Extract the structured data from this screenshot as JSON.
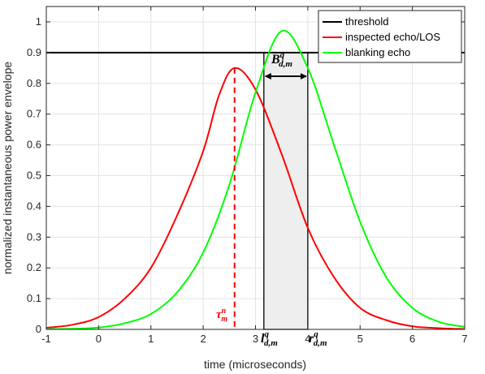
{
  "chart_data": {
    "type": "line",
    "title": "",
    "xlabel": "time (microseconds)",
    "ylabel": "normalized instantaneous power envelope",
    "xlim": [
      -1,
      7
    ],
    "ylim": [
      0,
      1.05
    ],
    "xticks": [
      -1,
      0,
      1,
      2,
      3,
      4,
      5,
      6,
      7
    ],
    "yticks": [
      0,
      0.1,
      0.2,
      0.3,
      0.4,
      0.5,
      0.6,
      0.7,
      0.8,
      0.9,
      1
    ],
    "xtick_labels": [
      "-1",
      "0",
      "1",
      "2",
      "3",
      "4",
      "5",
      "6",
      "7"
    ],
    "ytick_labels": [
      "0",
      "0.1",
      "0.2",
      "0.3",
      "0.4",
      "0.5",
      "0.6",
      "0.7",
      "0.8",
      "0.9",
      "1"
    ],
    "grid": true,
    "legend_position": "top-right",
    "series": [
      {
        "name": "threshold",
        "color": "#000000",
        "x": [
          -1,
          7
        ],
        "y": [
          0.9,
          0.9
        ]
      },
      {
        "name": "inspected echo/LOS",
        "color": "#ff0000",
        "x": [
          -1,
          -0.5,
          0,
          0.5,
          1,
          1.5,
          2,
          2.3,
          2.6,
          3,
          3.5,
          4,
          4.5,
          5,
          5.5,
          6,
          6.5,
          7
        ],
        "y": [
          0.005,
          0.015,
          0.04,
          0.1,
          0.2,
          0.37,
          0.58,
          0.76,
          0.85,
          0.78,
          0.57,
          0.33,
          0.17,
          0.07,
          0.03,
          0.01,
          0.004,
          0.001
        ]
      },
      {
        "name": "blanking echo",
        "color": "#00ff00",
        "x": [
          -1,
          -0.5,
          0,
          0.5,
          1,
          1.5,
          2,
          2.5,
          3,
          3.5,
          4,
          4.5,
          5,
          5.5,
          6,
          6.5,
          7
        ],
        "y": [
          0.001,
          0.002,
          0.006,
          0.02,
          0.05,
          0.12,
          0.25,
          0.47,
          0.77,
          0.97,
          0.85,
          0.6,
          0.35,
          0.17,
          0.07,
          0.025,
          0.008
        ]
      }
    ],
    "annotations": {
      "tau_marker": {
        "x": 2.6,
        "y_top": 0.85,
        "color": "#ff0000",
        "label_main": "τ",
        "label_sup": "n",
        "label_sub": "m"
      },
      "blanking_region": {
        "x_start": 3.16,
        "x_end": 4.0,
        "y_top": 0.9,
        "fill": "#eeeeee"
      },
      "width_label": {
        "main": "B",
        "sup": "q",
        "sub": "d,m"
      },
      "left_edge_label": {
        "main": "l",
        "sup": "q",
        "sub": "d,m"
      },
      "right_edge_label": {
        "main": "r",
        "sup": "q",
        "sub": "d,m"
      }
    }
  }
}
